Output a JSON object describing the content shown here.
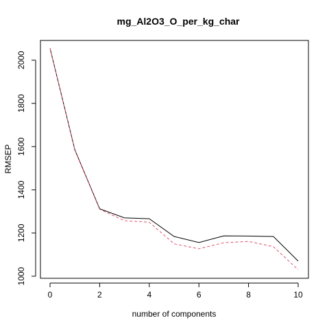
{
  "chart_data": {
    "type": "line",
    "title": "mg_Al2O3_O_per_kg_char",
    "xlabel": "number of components",
    "ylabel": "RMSEP",
    "x": [
      0,
      1,
      2,
      3,
      4,
      5,
      6,
      7,
      8,
      9,
      10
    ],
    "xlim": [
      0,
      10
    ],
    "ylim": [
      1000,
      2050
    ],
    "xticks": [
      0,
      2,
      4,
      6,
      8,
      10
    ],
    "yticks": [
      1000,
      1200,
      1400,
      1600,
      1800,
      2000
    ],
    "grid": false,
    "legend": "none",
    "series": [
      {
        "values": [
          2055,
          1585,
          1312,
          1270,
          1266,
          1184,
          1156,
          1187,
          1186,
          1184,
          1070
        ],
        "color": "#000000",
        "dash": "solid"
      },
      {
        "values": [
          2055,
          1583,
          1310,
          1257,
          1250,
          1150,
          1127,
          1155,
          1161,
          1137,
          1030
        ],
        "color": "#DF536B",
        "dash": "dashed"
      }
    ]
  }
}
